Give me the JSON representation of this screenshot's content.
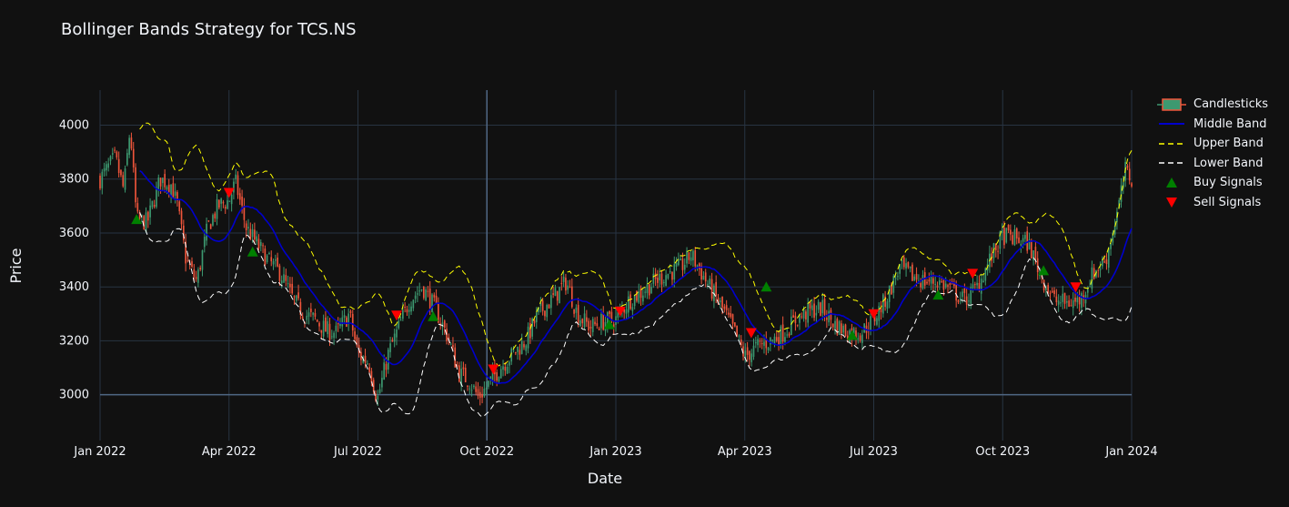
{
  "chart_data": {
    "type": "candlestick",
    "title": "Bollinger Bands Strategy for TCS.NS",
    "xlabel": "Date",
    "ylabel": "Price",
    "ylim": [
      2830,
      4130
    ],
    "x_range_months": [
      0,
      24
    ],
    "x_ticks": [
      {
        "label": "Jan 2022",
        "month": 0
      },
      {
        "label": "Apr 2022",
        "month": 3
      },
      {
        "label": "Jul 2022",
        "month": 6
      },
      {
        "label": "Oct 2022",
        "month": 9
      },
      {
        "label": "Jan 2023",
        "month": 12
      },
      {
        "label": "Apr 2023",
        "month": 15
      },
      {
        "label": "Jul 2023",
        "month": 18
      },
      {
        "label": "Oct 2023",
        "month": 21
      },
      {
        "label": "Jan 2024",
        "month": 24
      }
    ],
    "y_ticks": [
      3000,
      3200,
      3400,
      3600,
      3800,
      4000
    ],
    "price_path": [
      [
        0.0,
        3800
      ],
      [
        0.35,
        3880
      ],
      [
        0.55,
        3760
      ],
      [
        0.7,
        3990
      ],
      [
        0.85,
        3650
      ],
      [
        1.1,
        3640
      ],
      [
        1.4,
        3800
      ],
      [
        1.65,
        3780
      ],
      [
        1.8,
        3700
      ],
      [
        2.0,
        3500
      ],
      [
        2.25,
        3420
      ],
      [
        2.5,
        3620
      ],
      [
        2.75,
        3700
      ],
      [
        3.0,
        3720
      ],
      [
        3.15,
        3790
      ],
      [
        3.4,
        3620
      ],
      [
        3.65,
        3560
      ],
      [
        3.9,
        3500
      ],
      [
        4.2,
        3450
      ],
      [
        4.5,
        3350
      ],
      [
        4.75,
        3300
      ],
      [
        5.0,
        3280
      ],
      [
        5.25,
        3240
      ],
      [
        5.5,
        3230
      ],
      [
        5.8,
        3300
      ],
      [
        6.0,
        3150
      ],
      [
        6.25,
        3120
      ],
      [
        6.45,
        2980
      ],
      [
        6.7,
        3150
      ],
      [
        6.95,
        3250
      ],
      [
        7.2,
        3350
      ],
      [
        7.5,
        3400
      ],
      [
        7.8,
        3320
      ],
      [
        8.1,
        3210
      ],
      [
        8.35,
        3080
      ],
      [
        8.6,
        3050
      ],
      [
        8.8,
        2990
      ],
      [
        9.0,
        3030
      ],
      [
        9.3,
        3100
      ],
      [
        9.6,
        3150
      ],
      [
        9.9,
        3200
      ],
      [
        10.2,
        3300
      ],
      [
        10.55,
        3360
      ],
      [
        10.85,
        3420
      ],
      [
        11.1,
        3300
      ],
      [
        11.4,
        3250
      ],
      [
        11.65,
        3270
      ],
      [
        12.0,
        3280
      ],
      [
        12.3,
        3350
      ],
      [
        12.6,
        3380
      ],
      [
        12.9,
        3420
      ],
      [
        13.2,
        3450
      ],
      [
        13.5,
        3470
      ],
      [
        13.75,
        3520
      ],
      [
        14.0,
        3450
      ],
      [
        14.25,
        3380
      ],
      [
        14.55,
        3300
      ],
      [
        14.8,
        3220
      ],
      [
        15.0,
        3140
      ],
      [
        15.3,
        3180
      ],
      [
        15.6,
        3200
      ],
      [
        15.9,
        3230
      ],
      [
        16.2,
        3280
      ],
      [
        16.5,
        3310
      ],
      [
        16.8,
        3320
      ],
      [
        17.1,
        3260
      ],
      [
        17.4,
        3230
      ],
      [
        17.7,
        3230
      ],
      [
        18.0,
        3280
      ],
      [
        18.3,
        3360
      ],
      [
        18.6,
        3470
      ],
      [
        18.9,
        3440
      ],
      [
        19.2,
        3420
      ],
      [
        19.5,
        3420
      ],
      [
        19.8,
        3390
      ],
      [
        20.1,
        3350
      ],
      [
        20.4,
        3400
      ],
      [
        20.7,
        3500
      ],
      [
        21.0,
        3590
      ],
      [
        21.3,
        3580
      ],
      [
        21.6,
        3560
      ],
      [
        21.9,
        3440
      ],
      [
        22.2,
        3350
      ],
      [
        22.5,
        3340
      ],
      [
        22.8,
        3350
      ],
      [
        23.1,
        3450
      ],
      [
        23.4,
        3500
      ],
      [
        23.7,
        3700
      ],
      [
        23.85,
        3830
      ],
      [
        24.0,
        3800
      ]
    ],
    "buy_signals": [
      [
        0.85,
        3650
      ],
      [
        3.55,
        3530
      ],
      [
        7.75,
        3290
      ],
      [
        11.85,
        3260
      ],
      [
        15.5,
        3400
      ],
      [
        17.5,
        3220
      ],
      [
        19.5,
        3370
      ],
      [
        21.95,
        3460
      ]
    ],
    "sell_signals": [
      [
        3.0,
        3750
      ],
      [
        6.9,
        3295
      ],
      [
        9.15,
        3095
      ],
      [
        12.1,
        3310
      ],
      [
        15.15,
        3230
      ],
      [
        18.0,
        3300
      ],
      [
        20.3,
        3450
      ],
      [
        22.7,
        3400
      ]
    ],
    "legend": [
      {
        "label": "Candlesticks",
        "key": "candles"
      },
      {
        "label": "Middle Band",
        "key": "middle"
      },
      {
        "label": "Upper Band",
        "key": "upper"
      },
      {
        "label": "Lower Band",
        "key": "lower"
      },
      {
        "label": "Buy Signals",
        "key": "buy"
      },
      {
        "label": "Sell Signals",
        "key": "sell"
      }
    ],
    "colors": {
      "background": "#111111",
      "grid": "#283442",
      "increasing": "#3d9970",
      "decreasing": "#ef553b",
      "middle_band": "#0000cd",
      "upper_band": "#ffff00",
      "lower_band": "#ffffff",
      "buy": "#008000",
      "sell": "#ff0000"
    }
  }
}
